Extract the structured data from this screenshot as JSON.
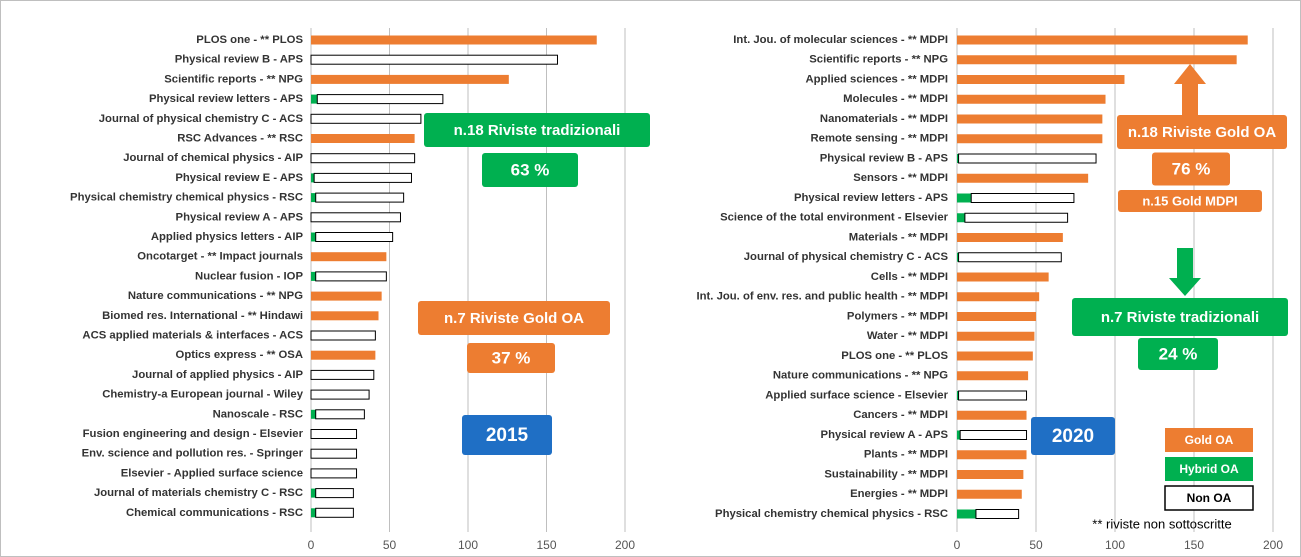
{
  "chart_data": [
    {
      "type": "bar",
      "orientation": "horizontal",
      "stacked": true,
      "categories": [
        "PLOS one - ** PLOS",
        "Physical review B - APS",
        "Scientific reports - ** NPG",
        "Physical review letters - APS",
        "Journal of physical chemistry C - ACS",
        "RSC Advances - ** RSC",
        "Journal of chemical physics - AIP",
        "Physical review E - APS",
        "Physical chemistry chemical physics - RSC",
        "Physical review A - APS",
        "Applied physics letters - AIP",
        "Oncotarget - ** Impact journals",
        "Nuclear fusion - IOP",
        "Nature communications - ** NPG",
        "Biomed res. International - ** Hindawi",
        "ACS applied materials & interfaces - ACS",
        "Optics express - ** OSA",
        "Journal of applied physics - AIP",
        "Chemistry-a European journal - Wiley",
        "Nanoscale - RSC",
        "Fusion engineering and design - Elsevier",
        "Env. science and pollution res. - Springer",
        "Elsevier - Applied surface science",
        "Journal of materials chemistry C - RSC",
        "Chemical communications - RSC"
      ],
      "series": [
        {
          "name": "Gold OA",
          "color": "#ed7d31",
          "values": [
            182,
            null,
            126,
            null,
            null,
            66,
            null,
            null,
            null,
            null,
            null,
            48,
            null,
            45,
            43,
            null,
            41,
            null,
            null,
            null,
            null,
            null,
            null,
            null,
            null
          ]
        },
        {
          "name": "Hybrid OA",
          "color": "#00b050",
          "values": [
            null,
            null,
            null,
            4,
            null,
            null,
            null,
            2,
            3,
            null,
            3,
            null,
            3,
            null,
            null,
            null,
            null,
            null,
            null,
            3,
            null,
            null,
            null,
            3,
            3
          ]
        },
        {
          "name": "Non OA",
          "color": "#ffffff",
          "values": [
            null,
            157,
            null,
            80,
            70,
            null,
            66,
            62,
            56,
            57,
            49,
            null,
            45,
            null,
            null,
            41,
            null,
            40,
            37,
            31,
            29,
            29,
            29,
            24,
            24
          ]
        }
      ],
      "xlim": [
        0,
        200
      ],
      "xticks": [
        0,
        50,
        100,
        150,
        200
      ],
      "grid": true,
      "annotations": [
        {
          "text": "n.18 Riviste tradizionali",
          "color": "#00b050"
        },
        {
          "text": "63 %",
          "color": "#00b050"
        },
        {
          "text": "n.7 Riviste Gold OA",
          "color": "#ed7d31"
        },
        {
          "text": "37 %",
          "color": "#ed7d31"
        },
        {
          "text": "2015",
          "color": "#1f6fc5"
        }
      ]
    },
    {
      "type": "bar",
      "orientation": "horizontal",
      "stacked": true,
      "categories": [
        "Int. Jou. of molecular sciences - ** MDPI",
        "Scientific reports - ** NPG",
        "Applied sciences - ** MDPI",
        "Molecules - ** MDPI",
        "Nanomaterials - ** MDPI",
        "Remote sensing - ** MDPI",
        "Physical review B - APS",
        "Sensors - ** MDPI",
        "Physical review letters - APS",
        "Science of the total environment - Elsevier",
        "Materials - ** MDPI",
        "Journal of physical chemistry C - ACS",
        "Cells - ** MDPI",
        "Int. Jou. of env. res. and public health - ** MDPI",
        "Polymers - ** MDPI",
        "Water - ** MDPI",
        "PLOS one - ** PLOS",
        "Nature communications - ** NPG",
        "Applied surface science - Elsevier",
        "Cancers - ** MDPI",
        "Physical review A - APS",
        "Plants - ** MDPI",
        "Sustainability - ** MDPI",
        "Energies - ** MDPI",
        "Physical chemistry chemical physics - RSC"
      ],
      "series": [
        {
          "name": "Gold OA",
          "color": "#ed7d31",
          "values": [
            184,
            177,
            106,
            94,
            92,
            92,
            null,
            83,
            null,
            null,
            67,
            null,
            58,
            52,
            50,
            49,
            48,
            45,
            null,
            44,
            null,
            44,
            42,
            41,
            null
          ]
        },
        {
          "name": "Hybrid OA",
          "color": "#00b050",
          "values": [
            null,
            null,
            null,
            null,
            null,
            null,
            1,
            null,
            9,
            5,
            null,
            1,
            null,
            null,
            null,
            null,
            null,
            null,
            1,
            null,
            2,
            null,
            null,
            null,
            12
          ]
        },
        {
          "name": "Non OA",
          "color": "#ffffff",
          "values": [
            null,
            null,
            null,
            null,
            null,
            null,
            87,
            null,
            65,
            65,
            null,
            65,
            null,
            null,
            null,
            null,
            null,
            null,
            43,
            null,
            42,
            null,
            null,
            null,
            27
          ]
        }
      ],
      "xlim": [
        0,
        200
      ],
      "xticks": [
        0,
        50,
        100,
        150,
        200
      ],
      "grid": true,
      "legend": "lower right",
      "annotations": [
        {
          "text": "n.18 Riviste Gold OA",
          "color": "#ed7d31"
        },
        {
          "text": "76 %",
          "color": "#ed7d31"
        },
        {
          "text": "n.15 Gold MDPI",
          "color": "#ed7d31"
        },
        {
          "text": "n.7 Riviste tradizionali",
          "color": "#00b050"
        },
        {
          "text": "24 %",
          "color": "#00b050"
        },
        {
          "text": "2020",
          "color": "#1f6fc5"
        },
        {
          "text": "** riviste non sottoscritte"
        }
      ]
    }
  ]
}
